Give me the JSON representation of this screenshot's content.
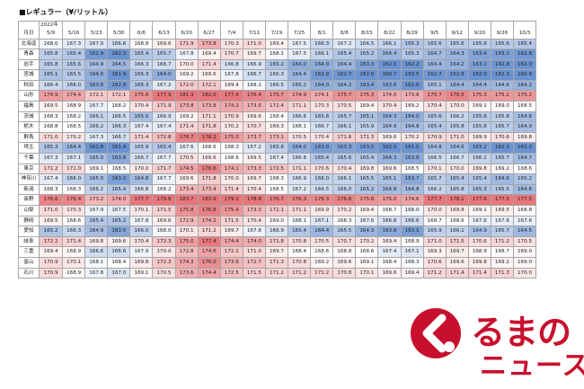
{
  "title": "■レギュラー（¥/リットル）",
  "year_label": "2022年",
  "month_label": "月日",
  "dates": [
    "5/9",
    "5/16",
    "5/23",
    "5/30",
    "6/6",
    "6/13",
    "6/20",
    "6/27",
    "7/4",
    "7/11",
    "7/19",
    "7/25",
    "8/1",
    "8/8",
    "8/15",
    "8/22",
    "8/29",
    "9/5",
    "9/12",
    "9/20",
    "9/26",
    "10/3"
  ],
  "rows": [
    {
      "pref": "北海道",
      "values": [
        "168.0",
        "167.3",
        "167.0",
        "166.6",
        "168.8",
        "169.6",
        "171.9",
        "173.8",
        "170.3",
        "171.0",
        "169.4",
        "167.5",
        "166.3",
        "167.2",
        "166.5",
        "166.1",
        "165.3",
        "165.6",
        "165.6",
        "165.8",
        "165.6",
        "165.4"
      ]
    },
    {
      "pref": "青森",
      "values": [
        "165.8",
        "165.4",
        "162.9",
        "162.3",
        "165.4",
        "165.7",
        "167.8",
        "169.4",
        "170.7",
        "169.7",
        "168.1",
        "167.5",
        "166.1",
        "165.4",
        "165.2",
        "164.4",
        "165.3",
        "164.7",
        "164.3",
        "163.4",
        "163.2",
        "162.8"
      ]
    },
    {
      "pref": "岩手",
      "values": [
        "165.8",
        "165.6",
        "164.9",
        "164.5",
        "166.3",
        "166.7",
        "170.0",
        "171.4",
        "166.8",
        "166.9",
        "165.2",
        "164.0",
        "164.0",
        "164.4",
        "163.3",
        "162.5",
        "162.2",
        "164.4",
        "164.2",
        "163.1",
        "162.8",
        "162.0"
      ]
    },
    {
      "pref": "宮城",
      "values": [
        "165.1",
        "165.5",
        "164.0",
        "161.9",
        "165.3",
        "164.0",
        "169.2",
        "169.6",
        "167.8",
        "166.7",
        "166.3",
        "164.4",
        "162.9",
        "162.7",
        "162.0",
        "160.7",
        "159.5",
        "162.7",
        "162.8",
        "162.0",
        "162.3",
        "160.9"
      ]
    },
    {
      "pref": "秋田",
      "values": [
        "166.4",
        "166.0",
        "163.8",
        "162.9",
        "165.3",
        "167.2",
        "172.0",
        "172.1",
        "169.4",
        "168.1",
        "166.5",
        "165.2",
        "164.0",
        "164.2",
        "163.4",
        "163.6",
        "162.6",
        "165.1",
        "164.4",
        "164.4",
        "164.6",
        "164.2"
      ]
    },
    {
      "pref": "山形",
      "values": [
        "174.9",
        "174.4",
        "172.1",
        "172.1",
        "175.6",
        "177.9",
        "181.3",
        "182.0",
        "177.4",
        "176.4",
        "175.7",
        "174.9",
        "174.1",
        "175.7",
        "175.3",
        "174.0",
        "173.8",
        "175.7",
        "176.5",
        "175.3",
        "175.2",
        "175.2"
      ]
    },
    {
      "pref": "福島",
      "values": [
        "169.5",
        "168.9",
        "167.7",
        "168.2",
        "170.4",
        "171.9",
        "173.8",
        "173.8",
        "174.2",
        "173.5",
        "172.4",
        "171.1",
        "170.3",
        "170.5",
        "169.4",
        "170.4",
        "169.2",
        "170.4",
        "170.0",
        "169.1",
        "169.0",
        "168.5"
      ]
    },
    {
      "pref": "茨城",
      "values": [
        "168.3",
        "168.2",
        "166.1",
        "166.5",
        "165.0",
        "166.9",
        "169.2",
        "171.1",
        "170.9",
        "169.6",
        "168.4",
        "166.6",
        "165.8",
        "165.7",
        "165.1",
        "164.3",
        "164.0",
        "165.6",
        "166.2",
        "165.6",
        "165.8",
        "164.8"
      ]
    },
    {
      "pref": "栃木",
      "values": [
        "168.8",
        "168.5",
        "166.2",
        "166.3",
        "167.4",
        "167.4",
        "171.4",
        "171.8",
        "170.2",
        "170.7",
        "169.3",
        "168.1",
        "166.7",
        "166.1",
        "165.9",
        "164.9",
        "164.8",
        "165.4",
        "165.8",
        "165.8",
        "165.7",
        "164.9"
      ]
    },
    {
      "pref": "群馬",
      "values": [
        "171.0",
        "170.2",
        "167.3",
        "166.7",
        "171.4",
        "172.8",
        "176.7",
        "178.2",
        "175.0",
        "173.7",
        "173.1",
        "170.5",
        "170.4",
        "171.6",
        "171.3",
        "169.6",
        "170.2",
        "170.9",
        "171.0",
        "169.9",
        "170.6",
        "169.8"
      ]
    },
    {
      "pref": "埼玉",
      "values": [
        "165.3",
        "164.4",
        "161.8",
        "161.4",
        "165.9",
        "165.4",
        "167.6",
        "168.6",
        "168.3",
        "167.2",
        "165.8",
        "164.0",
        "163.0",
        "163.3",
        "163.0",
        "162.5",
        "161.5",
        "164.8",
        "164.6",
        "163.2",
        "162.3",
        "161.2"
      ]
    },
    {
      "pref": "千葉",
      "values": [
        "167.3",
        "167.1",
        "165.0",
        "163.8",
        "166.7",
        "167.7",
        "170.5",
        "169.6",
        "168.6",
        "169.5",
        "167.4",
        "166.8",
        "165.4",
        "165.6",
        "165.4",
        "164.3",
        "163.8",
        "166.5",
        "166.7",
        "166.2",
        "165.7",
        "164.7"
      ]
    },
    {
      "pref": "東京",
      "values": [
        "171.2",
        "171.0",
        "169.1",
        "168.5",
        "170.0",
        "171.7",
        "174.5",
        "176.6",
        "174.1",
        "173.3",
        "172.5",
        "171.1",
        "170.6",
        "170.4",
        "169.8",
        "169.6",
        "168.5",
        "170.1",
        "170.0",
        "169.8",
        "169.2",
        "168.6"
      ]
    },
    {
      "pref": "神奈川",
      "values": [
        "167.4",
        "166.0",
        "165.0",
        "163.2",
        "164.8",
        "167.7",
        "169.6",
        "171.8",
        "170.0",
        "169.7",
        "168.3",
        "166.9",
        "166.0",
        "166.1",
        "165.5",
        "165.1",
        "163.7",
        "165.7",
        "165.4",
        "165.4",
        "164.6",
        "165.2"
      ]
    },
    {
      "pref": "新潟",
      "values": [
        "168.3",
        "168.3",
        "166.2",
        "165.4",
        "166.8",
        "168.2",
        "173.4",
        "173.4",
        "171.4",
        "170.4",
        "168.5",
        "167.2",
        "166.5",
        "166.0",
        "165.2",
        "164.8",
        "164.8",
        "166.2",
        "165.8",
        "165.3",
        "165.5",
        "164.6"
      ]
    },
    {
      "pref": "長野",
      "values": [
        "176.6",
        "176.4",
        "173.2",
        "174.0",
        "177.7",
        "179.8",
        "183.7",
        "183.9",
        "179.2",
        "178.8",
        "176.7",
        "176.3",
        "176.3",
        "176.6",
        "175.6",
        "175.0",
        "174.6",
        "177.7",
        "178.1",
        "177.6",
        "177.5",
        "177.5"
      ]
    },
    {
      "pref": "山梨",
      "values": [
        "171.0",
        "170.3",
        "167.9",
        "167.5",
        "170.1",
        "171.5",
        "175.8",
        "176.8",
        "175.4",
        "173.3",
        "172.1",
        "171.1",
        "169.9",
        "170.2",
        "169.4",
        "168.7",
        "168.0",
        "170.0",
        "169.8",
        "169.1",
        "169.5",
        "168.8"
      ]
    },
    {
      "pref": "静岡",
      "values": [
        "169.5",
        "168.6",
        "165.4",
        "165.2",
        "167.8",
        "169.6",
        "172.9",
        "174.2",
        "171.5",
        "170.4",
        "169.0",
        "168.1",
        "167.1",
        "168.3",
        "167.6",
        "166.8",
        "166.6",
        "168.7",
        "168.6",
        "167.6",
        "167.6",
        "167.6"
      ]
    },
    {
      "pref": "愛知",
      "values": [
        "165.2",
        "166.3",
        "164.9",
        "163.5",
        "166.0",
        "168.0",
        "170.1",
        "171.2",
        "169.7",
        "167.8",
        "166.9",
        "165.4",
        "164.4",
        "165.5",
        "164.3",
        "163.8",
        "163.1",
        "165.9",
        "166.1",
        "164.9",
        "165.7",
        "164.5"
      ]
    },
    {
      "pref": "岐阜",
      "values": [
        "172.2",
        "171.4",
        "169.8",
        "169.6",
        "170.4",
        "172.3",
        "175.0",
        "177.4",
        "174.4",
        "174.0",
        "171.8",
        "170.8",
        "170.5",
        "170.7",
        "170.2",
        "169.4",
        "168.9",
        "171.0",
        "171.5",
        "170.6",
        "171.2",
        "170.5"
      ]
    },
    {
      "pref": "三重",
      "values": [
        "169.4",
        "168.9",
        "166.6",
        "166.6",
        "167.9",
        "170.0",
        "172.8",
        "174.6",
        "172.1",
        "171.0",
        "169.7",
        "168.4",
        "168.6",
        "168.8",
        "168.6",
        "167.4",
        "167.1",
        "169.3",
        "169.7",
        "168.9",
        "168.7",
        "169.0"
      ]
    },
    {
      "pref": "富山",
      "values": [
        "170.9",
        "170.1",
        "168.1",
        "168.4",
        "169.8",
        "172.3",
        "174.3",
        "176.0",
        "173.6",
        "172.7",
        "171.3",
        "170.8",
        "169.2",
        "169.6",
        "169.1",
        "168.4",
        "168.3",
        "170.6",
        "169.6",
        "169.8",
        "169.2",
        "169.0"
      ]
    },
    {
      "pref": "石川",
      "values": [
        "170.9",
        "168.9",
        "167.8",
        "167.0",
        "169.1",
        "170.5",
        "173.6",
        "174.4",
        "172.5",
        "171.5",
        "171.2",
        "171.2",
        "171.2",
        "170.8",
        "170.1",
        "169.6",
        "169.4",
        "171.2",
        "171.4",
        "171.4",
        "171.3",
        "170.0"
      ]
    }
  ],
  "colors": {
    "low": "#6a93d2",
    "mid": "#ffffff",
    "high": "#e9767a",
    "grid": "#a6a6a6",
    "brand": "#c8102e"
  },
  "logo": {
    "line1": "るまの",
    "line2": "ニュース"
  }
}
